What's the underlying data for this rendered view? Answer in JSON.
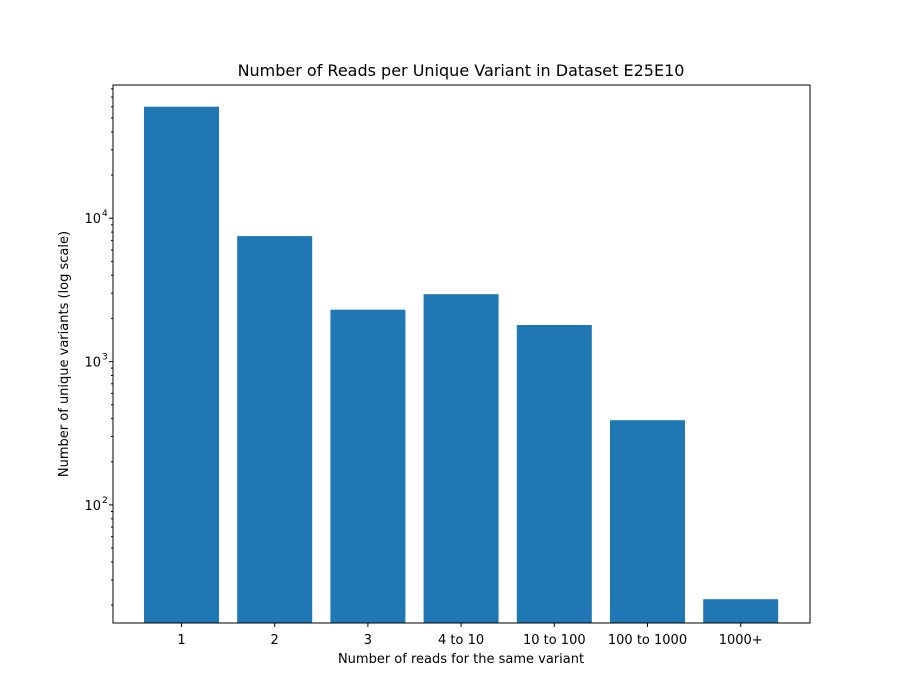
{
  "chart_data": {
    "type": "bar",
    "title": "Number of Reads per Unique Variant in Dataset E25E10",
    "xlabel": "Number of reads for the same variant",
    "ylabel": "Number of unique variants (log scale)",
    "yscale": "log",
    "ylim": [
      15,
      85000
    ],
    "grid": false,
    "categories": [
      "1",
      "2",
      "3",
      "4 to 10",
      "10 to 100",
      "100 to 1000",
      "1000+"
    ],
    "values": [
      60000,
      7500,
      2300,
      2950,
      1800,
      390,
      22
    ],
    "yticks": [
      {
        "base": "10",
        "exp": "2",
        "value": 100
      },
      {
        "base": "10",
        "exp": "3",
        "value": 1000
      },
      {
        "base": "10",
        "exp": "4",
        "value": 10000
      }
    ],
    "bar_color": "#1f77b4"
  }
}
